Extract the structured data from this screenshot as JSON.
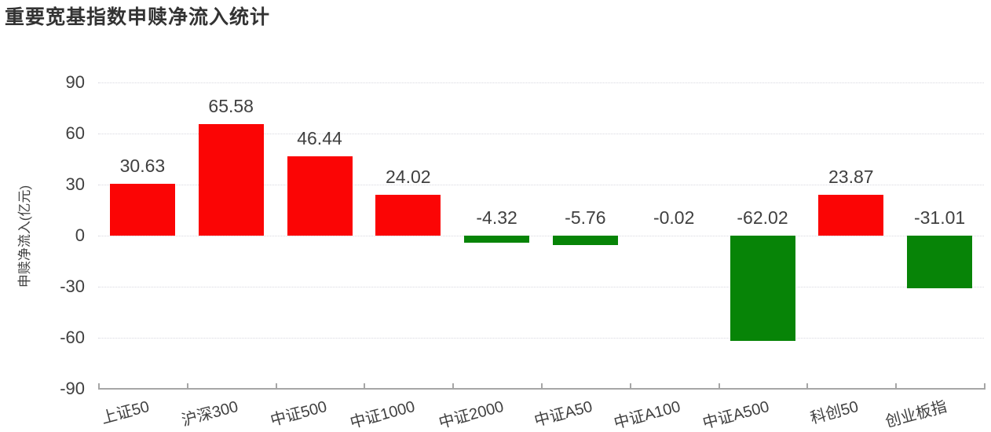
{
  "page": {
    "title": "重要宽基指数申赎净流入统计"
  },
  "chart_data": {
    "type": "bar",
    "title": "重要宽基指数申赎净流入统计",
    "xlabel": "",
    "ylabel": "申赎净流入(亿元)",
    "categories": [
      "上证50",
      "沪深300",
      "中证500",
      "中证1000",
      "中证2000",
      "中证A50",
      "中证A100",
      "中证A500",
      "科创50",
      "创业板指"
    ],
    "values": [
      30.63,
      65.58,
      46.44,
      24.02,
      -4.32,
      -5.76,
      -0.02,
      -62.02,
      23.87,
      -31.01
    ],
    "data_labels": [
      "30.63",
      "65.58",
      "46.44",
      "24.02",
      "-4.32",
      "-5.76",
      "-0.02",
      "-62.02",
      "23.87",
      "-31.01"
    ],
    "ytick_labels": [
      "90",
      "60",
      "30",
      "0",
      "-30",
      "-60",
      "-90"
    ],
    "ytick_values": [
      90,
      60,
      30,
      0,
      -30,
      -60,
      -90
    ],
    "ylim": [
      -90,
      90
    ],
    "legend_position": "none",
    "grid": "horizontal-dotted",
    "colors": {
      "positive_bar": "#fb0505",
      "negative_bar": "#078407",
      "label_text": "#404040",
      "axis_line": "#a6a6a6",
      "gridline": "#d8d8e0",
      "title_text": "#333333"
    }
  }
}
